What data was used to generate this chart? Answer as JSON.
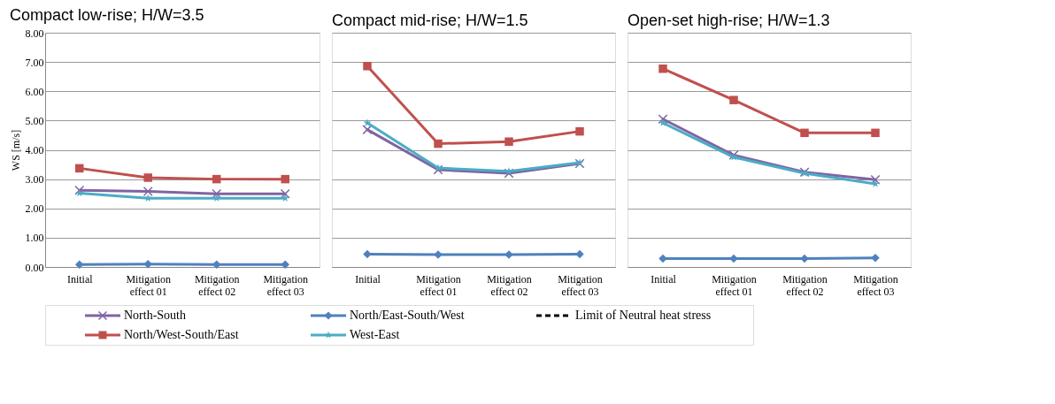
{
  "chart_data": [
    {
      "type": "line",
      "title": "Compact low-rise; H/W=3.5",
      "ylabel": "WS [m/s]",
      "categories": [
        "Initial",
        "Mitigation effect 01",
        "Mitigation effect 02",
        "Mitigation effect 03"
      ],
      "ylim": [
        0,
        8
      ],
      "yticks": [
        {
          "value": 0,
          "label": "0.00"
        },
        {
          "value": 1,
          "label": "1.00"
        },
        {
          "value": 2,
          "label": "2.00"
        },
        {
          "value": 3,
          "label": "3.00"
        },
        {
          "value": 4,
          "label": "4.00"
        },
        {
          "value": 5,
          "label": "5.00"
        },
        {
          "value": 6,
          "label": "6.00"
        },
        {
          "value": 7,
          "label": "7.00"
        },
        {
          "value": 8,
          "label": "8.00"
        }
      ],
      "grid": "y",
      "legend": "bottom",
      "series": [
        {
          "name": "North-South",
          "color": "#8064a2",
          "marker": "cross",
          "values": [
            2.62,
            2.58,
            2.5,
            2.5
          ]
        },
        {
          "name": "North/West-South/East",
          "color": "#c0504d",
          "marker": "square",
          "values": [
            3.37,
            3.05,
            3.0,
            3.0
          ]
        },
        {
          "name": "North/East-South/West",
          "color": "#4f81bd",
          "marker": "diamond",
          "values": [
            0.08,
            0.1,
            0.08,
            0.08
          ]
        },
        {
          "name": "West-East",
          "color": "#4bacc6",
          "marker": "star",
          "values": [
            2.52,
            2.35,
            2.35,
            2.35
          ]
        },
        {
          "name": "Limit of Neutral heat stress",
          "color": "#000000",
          "marker": "none",
          "line_style": "dashed",
          "values": [
            null,
            null,
            null,
            null
          ]
        }
      ]
    },
    {
      "type": "line",
      "title": "Compact mid-rise; H/W=1.5",
      "categories": [
        "Initial",
        "Mitigation effect 01",
        "Mitigation effect 02",
        "Mitigation effect 03"
      ],
      "ylim": [
        0,
        8
      ],
      "yticks": [
        {
          "value": 0,
          "label": null
        },
        {
          "value": 1,
          "label": null
        },
        {
          "value": 2,
          "label": null
        },
        {
          "value": 3,
          "label": null
        },
        {
          "value": 4,
          "label": null
        },
        {
          "value": 5,
          "label": null
        },
        {
          "value": 6,
          "label": null
        },
        {
          "value": 7,
          "label": null
        },
        {
          "value": 8,
          "label": null
        }
      ],
      "grid": "y",
      "tick_labels": "x",
      "series": [
        {
          "color": "#8064a2",
          "marker": "cross",
          "values": [
            4.69,
            3.32,
            3.2,
            3.53
          ]
        },
        {
          "color": "#c0504d",
          "marker": "square",
          "values": [
            6.86,
            4.21,
            4.28,
            4.63
          ]
        },
        {
          "color": "#4f81bd",
          "marker": "diamond",
          "values": [
            0.44,
            0.42,
            0.42,
            0.44
          ]
        },
        {
          "color": "#4bacc6",
          "marker": "star",
          "values": [
            4.92,
            3.38,
            3.27,
            3.56
          ]
        }
      ]
    },
    {
      "type": "line",
      "title": "Open-set high-rise; H/W=1.3",
      "categories": [
        "Initial",
        "Mitigation effect 01",
        "Mitigation effect 02",
        "Mitigation effect 03"
      ],
      "ylim": [
        0,
        8
      ],
      "yticks": [
        {
          "value": 0,
          "label": null
        },
        {
          "value": 1,
          "label": null
        },
        {
          "value": 2,
          "label": null
        },
        {
          "value": 3,
          "label": null
        },
        {
          "value": 4,
          "label": null
        },
        {
          "value": 5,
          "label": null
        },
        {
          "value": 6,
          "label": null
        },
        {
          "value": 7,
          "label": null
        },
        {
          "value": 8,
          "label": null
        }
      ],
      "grid": "y",
      "tick_labels": "x",
      "series": [
        {
          "color": "#8064a2",
          "marker": "cross",
          "values": [
            5.05,
            3.82,
            3.24,
            2.98
          ]
        },
        {
          "color": "#c0504d",
          "marker": "square",
          "values": [
            6.77,
            5.7,
            4.58,
            4.58
          ]
        },
        {
          "color": "#4f81bd",
          "marker": "diamond",
          "values": [
            0.29,
            0.29,
            0.29,
            0.31
          ]
        },
        {
          "color": "#4bacc6",
          "marker": "star",
          "values": [
            4.92,
            3.75,
            3.2,
            2.84
          ]
        }
      ]
    }
  ]
}
